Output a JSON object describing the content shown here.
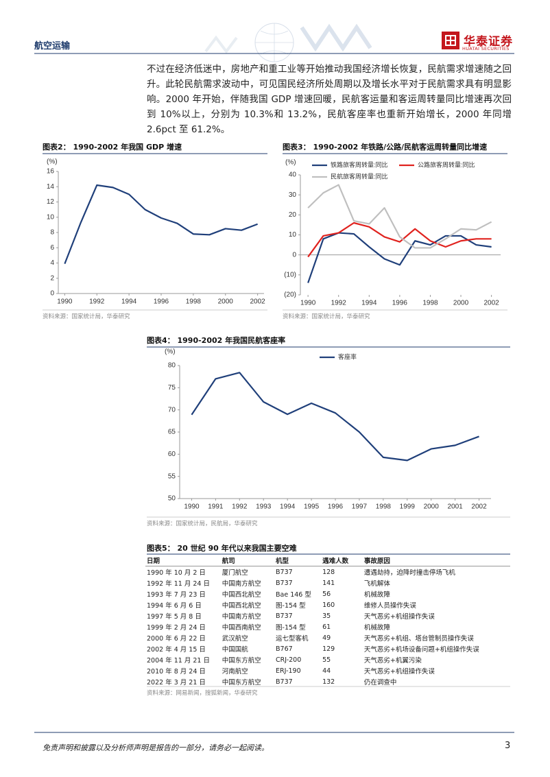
{
  "header": {
    "section": "航空运输",
    "logo_cn": "华泰证券",
    "logo_en": "HUATAI SECURITIES"
  },
  "paragraph": "不过在经济低迷中，房地产和重工业等开始推动我国经济增长恢复，民航需求增速随之回升。此轮民航需求波动中，可见国民经济所处周期以及增长水平对于民航需求具有明显影响。2000 年开始，伴随我国 GDP 增速回暖，民航客运量和客运周转量同比增速再次回到 10%以上，分别为 10.3%和 13.2%，民航客座率也重新开始增长，2000 年同增 2.6pct 至 61.2%。",
  "chart_data": [
    {
      "type": "line",
      "title": "图表2：  1990-2002 年我国 GDP 增速",
      "y_unit": "(%)",
      "source": "资料来源：国家统计局，华泰研究",
      "x": [
        1990,
        1991,
        1992,
        1993,
        1994,
        1995,
        1996,
        1997,
        1998,
        1999,
        2000,
        2001,
        2002
      ],
      "series": [
        {
          "color": "#1f3f7a",
          "values": [
            3.9,
            9.3,
            14.2,
            13.9,
            13.0,
            11.0,
            9.9,
            9.2,
            7.8,
            7.7,
            8.5,
            8.3,
            9.1
          ]
        }
      ],
      "xlim": [
        1989.6,
        2002.4
      ],
      "xticks": [
        1990,
        1992,
        1994,
        1996,
        1998,
        2000,
        2002
      ],
      "ylim": [
        0,
        16
      ],
      "yticks": [
        0,
        2,
        4,
        6,
        8,
        10,
        12,
        14,
        16
      ],
      "grid": false
    },
    {
      "type": "line",
      "title": "图表3：  1990-2002 年铁路/公路/民航客运周转量同比增速",
      "y_unit": "(%)",
      "source": "资料来源：国家统计局，华泰研究",
      "x": [
        1990,
        1991,
        1992,
        1993,
        1994,
        1995,
        1996,
        1997,
        1998,
        1999,
        2000,
        2001,
        2002
      ],
      "series": [
        {
          "name": "铁路旅客周转量:同比",
          "color": "#1f3f7a",
          "values": [
            -14,
            8,
            11,
            10.5,
            4,
            -2,
            -5,
            7,
            5,
            9.5,
            9.5,
            5,
            4
          ]
        },
        {
          "name": "公路旅客周转量:同比",
          "color": "#e0221e",
          "values": [
            -1,
            9.5,
            11,
            16,
            14,
            9,
            6.5,
            13,
            7,
            4,
            7,
            8,
            8
          ]
        },
        {
          "name": "民航旅客周转量:同比",
          "color": "#bfbfbf",
          "values": [
            23.5,
            31,
            35,
            17,
            15.5,
            23.5,
            9,
            3.5,
            3.5,
            8,
            13,
            12.5,
            16.5
          ]
        }
      ],
      "xlim": [
        1989.5,
        2002.6
      ],
      "xticks": [
        1990,
        1992,
        1994,
        1996,
        1998,
        2000,
        2002
      ],
      "ylim": [
        -20,
        40
      ],
      "yticks": [
        {
          "value": -20,
          "label": "(20)"
        },
        {
          "value": -10,
          "label": "(10)"
        },
        0,
        10,
        20,
        30,
        40
      ],
      "grid": false,
      "zero_line": true
    },
    {
      "type": "line",
      "title": "图表4：  1990-2002 年我国民航客座率",
      "y_unit": "(%)",
      "source": "资料来源：国家统计局，民航局，华泰研究",
      "x": [
        1990,
        1991,
        1992,
        1993,
        1994,
        1995,
        1996,
        1997,
        1998,
        1999,
        2000,
        2001,
        2002
      ],
      "series": [
        {
          "name": "客座率",
          "color": "#1f3f7a",
          "values": [
            68.9,
            77,
            78.4,
            71.8,
            69,
            71.5,
            69.3,
            65,
            59.3,
            58.6,
            61.2,
            62,
            64
          ]
        }
      ],
      "xlim": [
        1989.5,
        2002.5
      ],
      "xticks": [
        1990,
        1991,
        1992,
        1993,
        1994,
        1995,
        1996,
        1997,
        1998,
        1999,
        2000,
        2001,
        2002
      ],
      "ylim": [
        50,
        80
      ],
      "yticks": [
        50,
        55,
        60,
        65,
        70,
        75,
        80
      ],
      "grid": false
    }
  ],
  "table": {
    "title": "图表5：  20 世纪 90 年代以来我国主要空难",
    "columns": [
      "日期",
      "航司",
      "机型",
      "遇难人数",
      "事故原因"
    ],
    "rows": [
      [
        "1990 年 10 月 2 日",
        "厦门航空",
        "B737",
        128,
        "遭遇劫持，迫降时撞击停场飞机"
      ],
      [
        "1992 年 11 月 24 日",
        "中国南方航空",
        "B737",
        141,
        "飞机解体"
      ],
      [
        "1993 年 7 月 23 日",
        "中国西北航空",
        "Bae 146 型",
        56,
        "机械故障"
      ],
      [
        "1994 年 6 月 6 日",
        "中国西北航空",
        "图-154 型",
        160,
        "维修人员操作失误"
      ],
      [
        "1997 年 5 月 8 日",
        "中国南方航空",
        "B737",
        35,
        "天气恶劣+机组操作失误"
      ],
      [
        "1999 年 2 月 24 日",
        "中国西南航空",
        "图-154 型",
        61,
        "机械故障"
      ],
      [
        "2000 年 6 月 22 日",
        "武汉航空",
        "运七型客机",
        49,
        "天气恶劣+机组、塔台管制员操作失误"
      ],
      [
        "2002 年 4 月 15 日",
        "中国国航",
        "B767",
        129,
        "天气恶劣+机场设备问题+机组操作失误"
      ],
      [
        "2004 年 11 月 21 日",
        "中国东方航空",
        "CRJ-200",
        55,
        "天气恶劣+机翼污染"
      ],
      [
        "2010 年 8 月 24 日",
        "河南航空",
        "ERJ-190",
        44,
        "天气恶劣+机组操作失误"
      ],
      [
        "2022 年 3 月 21 日",
        "中国东方航空",
        "B737",
        132,
        "仍在调查中"
      ]
    ],
    "source": "资料来源：网易新闻，搜狐新闻，华泰研究"
  },
  "footer": {
    "disclaimer": "免责声明和披露以及分析师声明是报告的一部分，请务必一起阅读。",
    "page": 3
  }
}
